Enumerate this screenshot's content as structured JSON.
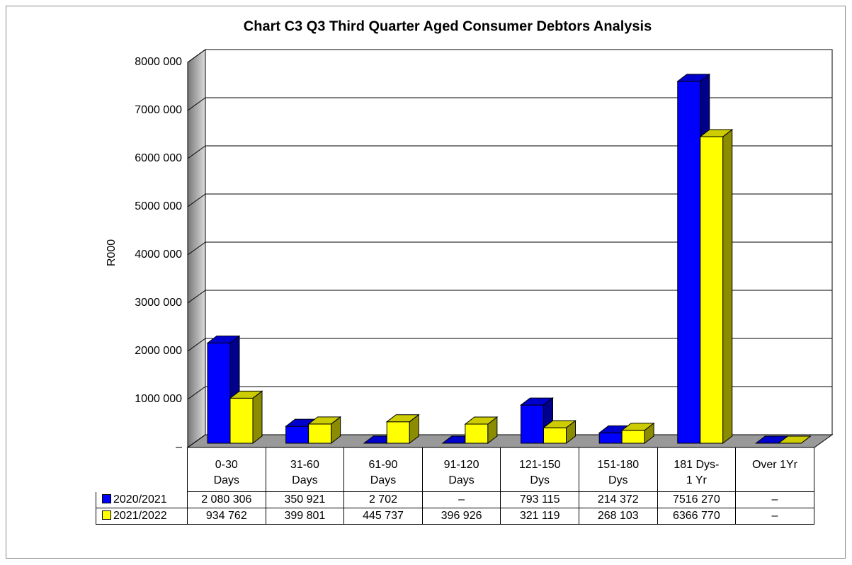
{
  "chart_data": {
    "type": "bar3d",
    "title": "Chart C3 Q3 Third Quarter Aged Consumer Debtors Analysis",
    "y_label": "R000",
    "categories": [
      "0-30\nDays",
      "31-60\nDays",
      "61-90\nDays",
      "91-120\nDays",
      "121-150\nDys",
      "151-180\nDys",
      "181 Dys-\n1 Yr",
      "Over 1Yr"
    ],
    "series": [
      {
        "name": "2020/2021",
        "color": "#0000ff",
        "values": [
          2080306,
          350921,
          2702,
          0,
          793115,
          214372,
          7516270,
          0
        ],
        "value_labels": [
          "2 080 306",
          "350 921",
          "2 702",
          "–",
          "793 115",
          "214 372",
          "7516 270",
          "–"
        ]
      },
      {
        "name": "2021/2022",
        "color": "#ffff00",
        "values": [
          934762,
          399801,
          445737,
          396926,
          321119,
          268103,
          6366770,
          0
        ],
        "value_labels": [
          "934 762",
          "399 801",
          "445 737",
          "396 926",
          "321 119",
          "268 103",
          "6366 770",
          "–"
        ]
      }
    ],
    "ylim": [
      0,
      8000000
    ],
    "yticks": [
      {
        "value": 0,
        "label": "–"
      },
      {
        "value": 1000000,
        "label": "1000 000"
      },
      {
        "value": 2000000,
        "label": "2000 000"
      },
      {
        "value": 3000000,
        "label": "3000 000"
      },
      {
        "value": 4000000,
        "label": "4000 000"
      },
      {
        "value": 5000000,
        "label": "5000 000"
      },
      {
        "value": 6000000,
        "label": "6000 000"
      },
      {
        "value": 7000000,
        "label": "7000 000"
      },
      {
        "value": 8000000,
        "label": "8000 000"
      }
    ],
    "grid": true
  }
}
